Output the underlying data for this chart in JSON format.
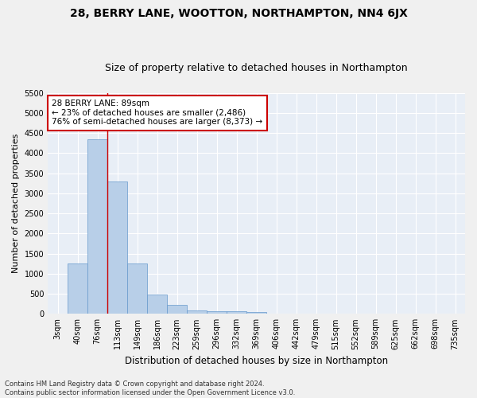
{
  "title": "28, BERRY LANE, WOOTTON, NORTHAMPTON, NN4 6JX",
  "subtitle": "Size of property relative to detached houses in Northampton",
  "xlabel": "Distribution of detached houses by size in Northampton",
  "ylabel": "Number of detached properties",
  "categories": [
    "3sqm",
    "40sqm",
    "76sqm",
    "113sqm",
    "149sqm",
    "186sqm",
    "223sqm",
    "259sqm",
    "296sqm",
    "332sqm",
    "369sqm",
    "406sqm",
    "442sqm",
    "479sqm",
    "515sqm",
    "552sqm",
    "589sqm",
    "625sqm",
    "662sqm",
    "698sqm",
    "735sqm"
  ],
  "bar_values": [
    0,
    1260,
    4350,
    3300,
    1260,
    490,
    215,
    95,
    75,
    60,
    55,
    0,
    0,
    0,
    0,
    0,
    0,
    0,
    0,
    0,
    0
  ],
  "bar_color": "#b8cfe8",
  "bar_edge_color": "#6699cc",
  "plot_bg_color": "#e8eef6",
  "fig_bg_color": "#f0f0f0",
  "grid_color": "#ffffff",
  "ylim": [
    0,
    5500
  ],
  "yticks": [
    0,
    500,
    1000,
    1500,
    2000,
    2500,
    3000,
    3500,
    4000,
    4500,
    5000,
    5500
  ],
  "property_line_color": "#cc0000",
  "property_line_bin": 2,
  "annotation_text": "28 BERRY LANE: 89sqm\n← 23% of detached houses are smaller (2,486)\n76% of semi-detached houses are larger (8,373) →",
  "annotation_box_color": "#ffffff",
  "annotation_box_edge": "#cc0000",
  "footnote": "Contains HM Land Registry data © Crown copyright and database right 2024.\nContains public sector information licensed under the Open Government Licence v3.0.",
  "title_fontsize": 10,
  "subtitle_fontsize": 9,
  "ylabel_fontsize": 8,
  "xlabel_fontsize": 8.5,
  "tick_fontsize": 7,
  "annotation_fontsize": 7.5,
  "footnote_fontsize": 6
}
